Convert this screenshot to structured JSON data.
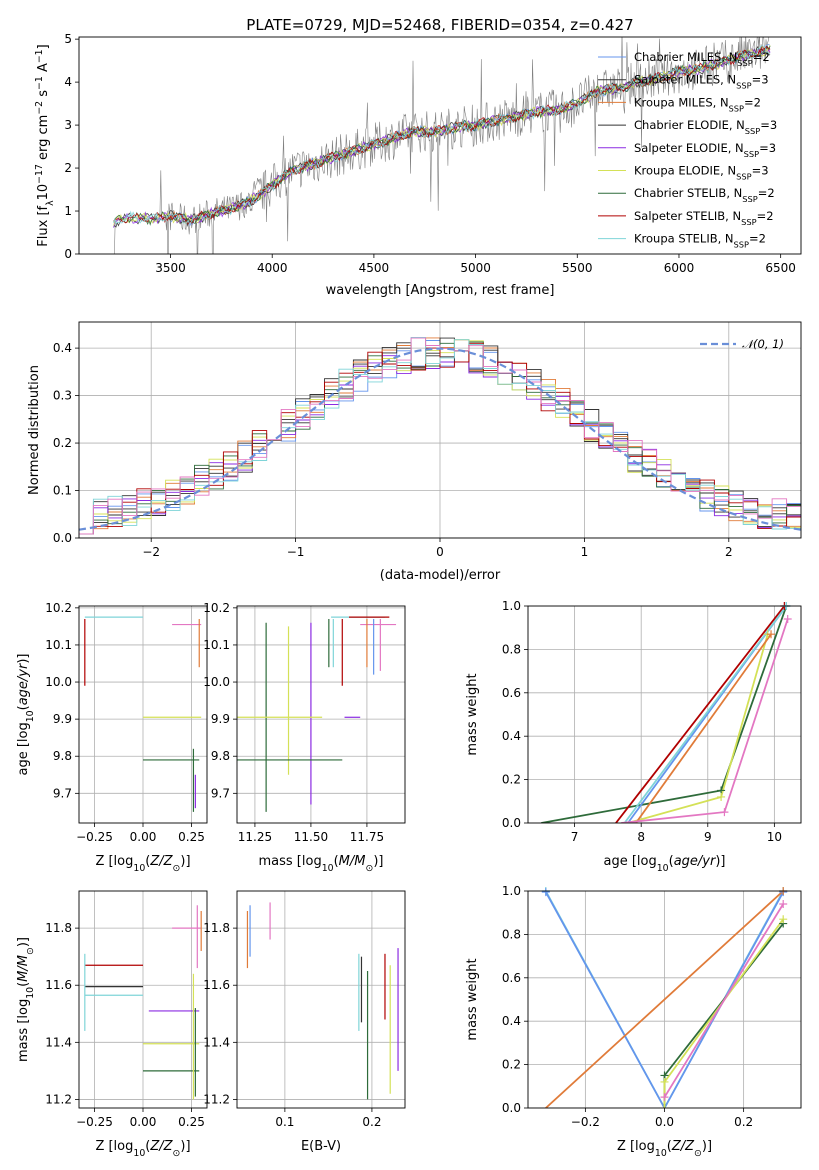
{
  "figure": {
    "title": "PLATE=0729, MJD=52468, FIBERID=0354, z=0.427"
  },
  "colors": {
    "chabrier_miles": "#6495ed",
    "salpeter_miles": "#333333",
    "kroupa_miles": "#e07b39",
    "chabrier_elodie": "#333333",
    "salpeter_elodie": "#8b2be2",
    "kroupa_elodie": "#d4e157",
    "chabrier_stelib": "#2e6b3a",
    "salpeter_stelib": "#b00000",
    "kroupa_stelib": "#7fd4d8",
    "pink": "#e377c2",
    "data": "#808080",
    "gauss": "#6a8fd8"
  },
  "legend_spectrum": [
    "Chabrier MILES, N_SSP=2",
    "Salpeter MILES, N_SSP=3",
    "Kroupa MILES, N_SSP=2",
    "Chabrier ELODIE, N_SSP=3",
    "Salpeter ELODIE, N_SSP=3",
    "Kroupa ELODIE, N_SSP=3",
    "Chabrier STELIB, N_SSP=2",
    "Salpeter STELIB, N_SSP=2",
    "Kroupa STELIB, N_SSP=2"
  ],
  "legend_hist": "𝒩(0, 1)",
  "chart_data": [
    {
      "id": "spectrum",
      "type": "line",
      "xlabel": "wavelength [Angstrom, rest frame]",
      "ylabel": "Flux [f_λ 10^-17 erg cm^-2 s^-1 A^-1]",
      "xlim": [
        3050,
        6600
      ],
      "ylim": [
        0,
        5.05
      ],
      "xticks": [
        3500,
        4000,
        4500,
        5000,
        5500,
        6000,
        6500
      ],
      "yticks": [
        0,
        1,
        2,
        3,
        4,
        5
      ],
      "model_continuum": {
        "x": [
          3220,
          3300,
          3400,
          3500,
          3600,
          3700,
          3800,
          3900,
          4000,
          4100,
          4200,
          4300,
          4400,
          4500,
          4600,
          4700,
          4800,
          4900,
          5000,
          5100,
          5200,
          5300,
          5400,
          5500,
          5600,
          5700,
          5800,
          5900,
          6000,
          6100,
          6200,
          6300,
          6450
        ],
        "y": [
          0.75,
          0.85,
          0.82,
          0.88,
          0.78,
          0.95,
          1.05,
          1.25,
          1.6,
          1.95,
          2.1,
          2.25,
          2.4,
          2.55,
          2.7,
          2.85,
          2.85,
          2.95,
          3.0,
          3.1,
          3.2,
          3.3,
          3.35,
          3.5,
          3.8,
          3.85,
          4.0,
          4.1,
          4.25,
          4.3,
          4.45,
          4.6,
          4.75
        ]
      }
    },
    {
      "id": "residual_hist",
      "type": "line",
      "xlabel": "(data-model)/error",
      "ylabel": "Normed distribution",
      "xlim": [
        -2.5,
        2.5
      ],
      "ylim": [
        0,
        0.455
      ],
      "xticks": [
        -2,
        -1,
        0,
        1,
        2
      ],
      "yticks": [
        0.0,
        0.1,
        0.2,
        0.3,
        0.4
      ],
      "gaussian": {
        "mean": 0,
        "sigma": 1
      }
    },
    {
      "id": "age_vs_Z",
      "type": "scatter",
      "xlabel": "Z [log10(Z/Z⊙)]",
      "ylabel": "age  [log10(age/yr)]",
      "xlim": [
        -0.33,
        0.33
      ],
      "ylim": [
        9.62,
        10.205
      ],
      "xticks": [
        -0.25,
        0.0,
        0.25
      ],
      "yticks": [
        9.7,
        9.8,
        9.9,
        10.0,
        10.1,
        10.2
      ],
      "points": [
        {
          "x": -0.3,
          "y": 10.175,
          "xerr": 0.0,
          "y1": 10.175,
          "y2": 10.175,
          "xa": -0.3,
          "xb": 0.0,
          "color": "kroupa_stelib"
        },
        {
          "x": -0.3,
          "y": 10.1,
          "xa": -0.3,
          "xb": -0.3,
          "y1": 9.99,
          "y2": 10.17,
          "color": "salpeter_stelib"
        },
        {
          "x": 0.25,
          "y": 10.155,
          "xa": 0.15,
          "xb": 0.3,
          "y1": 10.155,
          "y2": 10.155,
          "color": "pink"
        },
        {
          "x": 0.29,
          "y": 10.1,
          "xa": 0.29,
          "xb": 0.29,
          "y1": 10.04,
          "y2": 10.17,
          "color": "kroupa_miles"
        },
        {
          "x": 0.28,
          "y": 9.905,
          "xa": 0.0,
          "xb": 0.3,
          "y1": 9.905,
          "y2": 9.905,
          "color": "kroupa_elodie"
        },
        {
          "x": 0.27,
          "y": 9.79,
          "xa": 0.0,
          "xb": 0.29,
          "y1": 9.79,
          "y2": 9.79,
          "color": "chabrier_stelib"
        },
        {
          "x": 0.26,
          "y": 9.8,
          "xa": 0.26,
          "xb": 0.26,
          "y1": 9.65,
          "y2": 9.82,
          "color": "chabrier_stelib"
        },
        {
          "x": 0.27,
          "y": 9.7,
          "xa": 0.27,
          "xb": 0.27,
          "y1": 9.66,
          "y2": 9.75,
          "color": "salpeter_elodie"
        }
      ]
    },
    {
      "id": "age_vs_mass",
      "type": "scatter",
      "xlabel": "mass [log10(M/M⊙)]",
      "ylabel": "",
      "xlim": [
        11.17,
        11.92
      ],
      "ylim": [
        9.62,
        10.205
      ],
      "xticks": [
        11.25,
        11.5,
        11.75
      ],
      "yticks": [
        9.7,
        9.8,
        9.9,
        10.0,
        10.1,
        10.2
      ],
      "points": [
        {
          "xa": 11.59,
          "xb": 11.83,
          "y1": 10.175,
          "y2": 10.175,
          "color": "kroupa_stelib"
        },
        {
          "xa": 11.67,
          "xb": 11.85,
          "y1": 10.175,
          "y2": 10.175,
          "color": "salpeter_stelib"
        },
        {
          "xa": 11.72,
          "xb": 11.88,
          "y1": 10.155,
          "y2": 10.155,
          "color": "pink"
        },
        {
          "xa": 11.3,
          "xb": 11.3,
          "y1": 9.65,
          "y2": 10.16,
          "color": "chabrier_stelib"
        },
        {
          "xa": 11.4,
          "xb": 11.4,
          "y1": 9.75,
          "y2": 10.15,
          "color": "kroupa_elodie"
        },
        {
          "xa": 11.5,
          "xb": 11.5,
          "y1": 9.67,
          "y2": 10.16,
          "color": "salpeter_elodie"
        },
        {
          "xa": 11.58,
          "xb": 11.58,
          "y1": 10.04,
          "y2": 10.17,
          "color": "chabrier_stelib"
        },
        {
          "xa": 11.6,
          "xb": 11.6,
          "y1": 10.04,
          "y2": 10.17,
          "color": "kroupa_stelib"
        },
        {
          "xa": 11.64,
          "xb": 11.64,
          "y1": 9.99,
          "y2": 10.17,
          "color": "salpeter_stelib"
        },
        {
          "xa": 11.75,
          "xb": 11.75,
          "y1": 10.04,
          "y2": 10.17,
          "color": "kroupa_miles"
        },
        {
          "xa": 11.78,
          "xb": 11.78,
          "y1": 10.02,
          "y2": 10.17,
          "color": "chabrier_miles"
        },
        {
          "xa": 11.81,
          "xb": 11.81,
          "y1": 10.03,
          "y2": 10.17,
          "color": "pink"
        },
        {
          "xa": 11.15,
          "xb": 11.55,
          "y1": 9.905,
          "y2": 9.905,
          "color": "kroupa_elodie"
        },
        {
          "xa": 11.65,
          "xb": 11.72,
          "y1": 9.905,
          "y2": 9.905,
          "color": "salpeter_elodie"
        },
        {
          "xa": 11.15,
          "xb": 11.64,
          "y1": 9.79,
          "y2": 9.79,
          "color": "chabrier_stelib"
        }
      ]
    },
    {
      "id": "massweight_vs_age",
      "type": "line",
      "xlabel": "age  [log10(age/yr)]",
      "ylabel": "mass weight",
      "xlim": [
        6.3,
        10.4
      ],
      "ylim": [
        0,
        1.0
      ],
      "xticks": [
        7,
        8,
        9,
        10
      ],
      "yticks": [
        0.0,
        0.2,
        0.4,
        0.6,
        0.8,
        1.0
      ],
      "series": [
        {
          "color": "chabrier_stelib",
          "x": [
            6.5,
            9.2,
            10.18
          ],
          "y": [
            0.0,
            0.15,
            1.0
          ]
        },
        {
          "color": "kroupa_elodie",
          "x": [
            7.8,
            9.2,
            9.9
          ],
          "y": [
            0.0,
            0.12,
            0.87
          ]
        },
        {
          "color": "salpeter_stelib",
          "x": [
            7.62,
            10.15
          ],
          "y": [
            0.0,
            1.0
          ]
        },
        {
          "color": "kroupa_miles",
          "x": [
            7.92,
            9.95
          ],
          "y": [
            0.0,
            0.87
          ]
        },
        {
          "color": "chabrier_miles",
          "x": [
            7.8,
            10.18
          ],
          "y": [
            0.0,
            1.0
          ]
        },
        {
          "color": "kroupa_stelib",
          "x": [
            7.75,
            10.18
          ],
          "y": [
            0.0,
            1.0
          ]
        },
        {
          "color": "pink",
          "x": [
            7.7,
            9.25,
            10.2
          ],
          "y": [
            0.0,
            0.05,
            0.94
          ]
        }
      ]
    },
    {
      "id": "mass_vs_Z",
      "type": "scatter",
      "xlabel": "Z [log10(Z/Z⊙)]",
      "ylabel": "mass [log10(M/M⊙)]",
      "xlim": [
        -0.33,
        0.33
      ],
      "ylim": [
        11.17,
        11.93
      ],
      "xticks": [
        -0.25,
        0.0,
        0.25
      ],
      "yticks": [
        11.2,
        11.4,
        11.6,
        11.8
      ],
      "points": [
        {
          "xa": -0.3,
          "xb": 0.0,
          "y1": 11.67,
          "y2": 11.67,
          "color": "salpeter_stelib"
        },
        {
          "xa": -0.3,
          "xb": 0.0,
          "y1": 11.595,
          "y2": 11.595,
          "color": "chabrier_elodie"
        },
        {
          "xa": -0.3,
          "xb": 0.0,
          "y1": 11.565,
          "y2": 11.565,
          "color": "kroupa_stelib"
        },
        {
          "xa": -0.3,
          "xb": -0.3,
          "y1": 11.44,
          "y2": 11.71,
          "color": "kroupa_stelib"
        },
        {
          "xa": 0.15,
          "xb": 0.3,
          "y1": 11.8,
          "y2": 11.8,
          "color": "pink"
        },
        {
          "xa": 0.28,
          "xb": 0.28,
          "y1": 11.66,
          "y2": 11.88,
          "color": "pink"
        },
        {
          "xa": 0.3,
          "xb": 0.3,
          "y1": 11.72,
          "y2": 11.86,
          "color": "kroupa_miles"
        },
        {
          "xa": 0.03,
          "xb": 0.29,
          "y1": 11.51,
          "y2": 11.51,
          "color": "salpeter_elodie"
        },
        {
          "xa": 0.0,
          "xb": 0.29,
          "y1": 11.395,
          "y2": 11.395,
          "color": "kroupa_elodie"
        },
        {
          "xa": 0.0,
          "xb": 0.29,
          "y1": 11.3,
          "y2": 11.3,
          "color": "chabrier_stelib"
        },
        {
          "xa": 0.26,
          "xb": 0.26,
          "y1": 11.2,
          "y2": 11.64,
          "color": "kroupa_elodie"
        },
        {
          "xa": 0.27,
          "xb": 0.27,
          "y1": 11.21,
          "y2": 11.52,
          "color": "chabrier_stelib"
        }
      ]
    },
    {
      "id": "mass_vs_EBV",
      "type": "scatter",
      "xlabel": "E(B-V)",
      "ylabel": "",
      "xlim": [
        0.045,
        0.238
      ],
      "ylim": [
        11.17,
        11.93
      ],
      "xticks": [
        0.1,
        0.2
      ],
      "yticks": [
        11.2,
        11.4,
        11.6,
        11.8
      ],
      "points": [
        {
          "xa": 0.057,
          "xb": 0.057,
          "y1": 11.66,
          "y2": 11.86,
          "color": "kroupa_miles"
        },
        {
          "xa": 0.06,
          "xb": 0.06,
          "y1": 11.7,
          "y2": 11.88,
          "color": "chabrier_miles"
        },
        {
          "xa": 0.083,
          "xb": 0.083,
          "y1": 11.76,
          "y2": 11.89,
          "color": "pink"
        },
        {
          "xa": 0.185,
          "xb": 0.185,
          "y1": 11.44,
          "y2": 11.71,
          "color": "kroupa_stelib"
        },
        {
          "xa": 0.188,
          "xb": 0.188,
          "y1": 11.47,
          "y2": 11.7,
          "color": "chabrier_elodie"
        },
        {
          "xa": 0.195,
          "xb": 0.195,
          "y1": 11.2,
          "y2": 11.65,
          "color": "chabrier_stelib"
        },
        {
          "xa": 0.215,
          "xb": 0.215,
          "y1": 11.48,
          "y2": 11.71,
          "color": "salpeter_stelib"
        },
        {
          "xa": 0.221,
          "xb": 0.221,
          "y1": 11.22,
          "y2": 11.67,
          "color": "kroupa_elodie"
        },
        {
          "xa": 0.23,
          "xb": 0.23,
          "y1": 11.3,
          "y2": 11.73,
          "color": "salpeter_elodie"
        }
      ]
    },
    {
      "id": "massweight_vs_Z",
      "type": "line",
      "xlabel": "Z [log10(Z/Z⊙)]",
      "ylabel": "mass weight",
      "xlim": [
        -0.345,
        0.345
      ],
      "ylim": [
        0,
        1.0
      ],
      "xticks": [
        -0.2,
        0.0,
        0.2
      ],
      "yticks": [
        0.0,
        0.2,
        0.4,
        0.6,
        0.8,
        1.0
      ],
      "series": [
        {
          "color": "kroupa_stelib",
          "x": [
            -0.3,
            0.0,
            0.3
          ],
          "y": [
            1.0,
            0.0,
            1.0
          ]
        },
        {
          "color": "chabrier_miles",
          "x": [
            -0.3,
            0.0,
            0.3
          ],
          "y": [
            0.995,
            0.0,
            0.995
          ]
        },
        {
          "color": "kroupa_miles",
          "x": [
            -0.3,
            0.3
          ],
          "y": [
            0.0,
            1.0
          ]
        },
        {
          "color": "chabrier_stelib",
          "x": [
            0.0,
            0.0,
            0.3
          ],
          "y": [
            0.0,
            0.15,
            0.85
          ]
        },
        {
          "color": "kroupa_elodie",
          "x": [
            0.0,
            0.0,
            0.3
          ],
          "y": [
            0.0,
            0.12,
            0.87
          ]
        },
        {
          "color": "pink",
          "x": [
            0.0,
            0.3
          ],
          "y": [
            0.05,
            0.94
          ]
        }
      ]
    }
  ]
}
